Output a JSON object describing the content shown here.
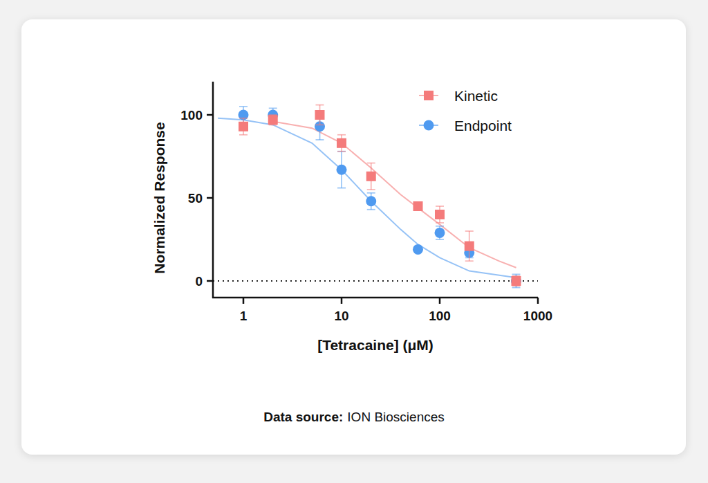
{
  "chart_data": {
    "type": "scatter",
    "x_label": "[Tetracaine] (μM)",
    "y_label": "Normalized Response",
    "source_label": "Data source:",
    "source": "ION Biosciences",
    "log": "x",
    "grid": false,
    "legend": "top-right",
    "xlim": [
      0.49,
      1000
    ],
    "ylim": [
      -10,
      120
    ],
    "xticks": [
      1,
      10,
      100,
      1000
    ],
    "yticks": [
      0,
      50,
      100
    ],
    "hline": 0,
    "series": [
      {
        "name": "Kinetic",
        "color": "#f47b7b",
        "marker": "square",
        "x": [
          1,
          2,
          6,
          10,
          20,
          60,
          100,
          200,
          600
        ],
        "values": [
          93,
          97,
          100,
          83,
          63,
          45,
          40,
          21,
          0
        ],
        "errors": [
          5,
          3,
          6,
          5,
          8,
          2,
          5,
          9,
          3
        ],
        "fit": {
          "x": [
            2,
            5,
            10,
            20,
            40,
            60,
            100,
            200,
            400,
            600
          ],
          "values": [
            96,
            92,
            83,
            68,
            52,
            44,
            34,
            20,
            12,
            8
          ]
        }
      },
      {
        "name": "Endpoint",
        "color": "#4f9af0",
        "marker": "circle",
        "x": [
          1,
          2,
          6,
          10,
          20,
          60,
          100,
          200,
          600
        ],
        "values": [
          100,
          100,
          93,
          67,
          48,
          19,
          29,
          17,
          0
        ],
        "errors": [
          5,
          4,
          8,
          11,
          5,
          0,
          4,
          3,
          4
        ],
        "fit": {
          "x": [
            0.55,
            1,
            2,
            5,
            10,
            20,
            40,
            60,
            100,
            200,
            600
          ],
          "values": [
            98,
            97,
            94,
            83,
            67,
            48,
            31,
            22,
            14,
            6,
            2
          ]
        }
      }
    ]
  }
}
